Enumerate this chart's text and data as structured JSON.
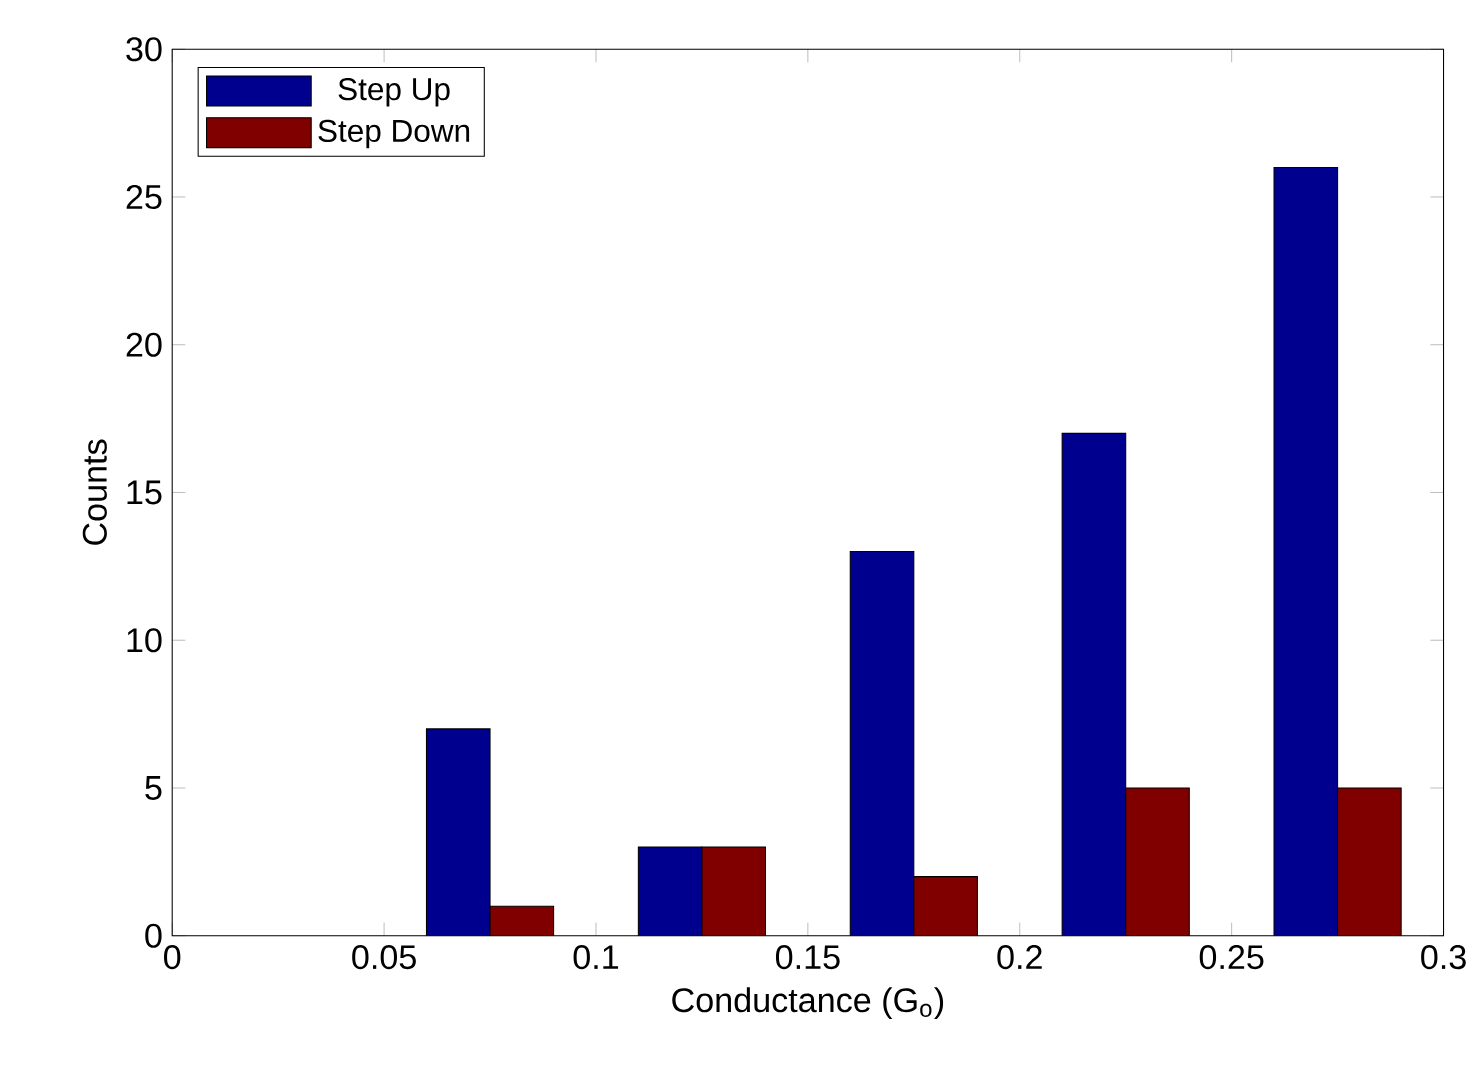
{
  "chart_data": {
    "type": "bar",
    "xlabel": "Conductance (G$_{o}$)",
    "ylabel": "Counts",
    "x": [
      0.075,
      0.125,
      0.175,
      0.225,
      0.275
    ],
    "series": [
      {
        "name": "Step Up",
        "color": "#00008f",
        "values": [
          7,
          3,
          13,
          17,
          26
        ]
      },
      {
        "name": "Step Down",
        "color": "#800000",
        "values": [
          1,
          3,
          2,
          5,
          5
        ]
      }
    ],
    "xlim": [
      0,
      0.3
    ],
    "xticks": [
      0,
      0.05,
      0.1,
      0.15,
      0.2,
      0.25,
      0.3
    ],
    "ylim": [
      0,
      30
    ],
    "yticks": [
      0,
      5,
      10,
      15,
      20,
      25,
      30
    ],
    "grid": false,
    "legend": "top left"
  }
}
